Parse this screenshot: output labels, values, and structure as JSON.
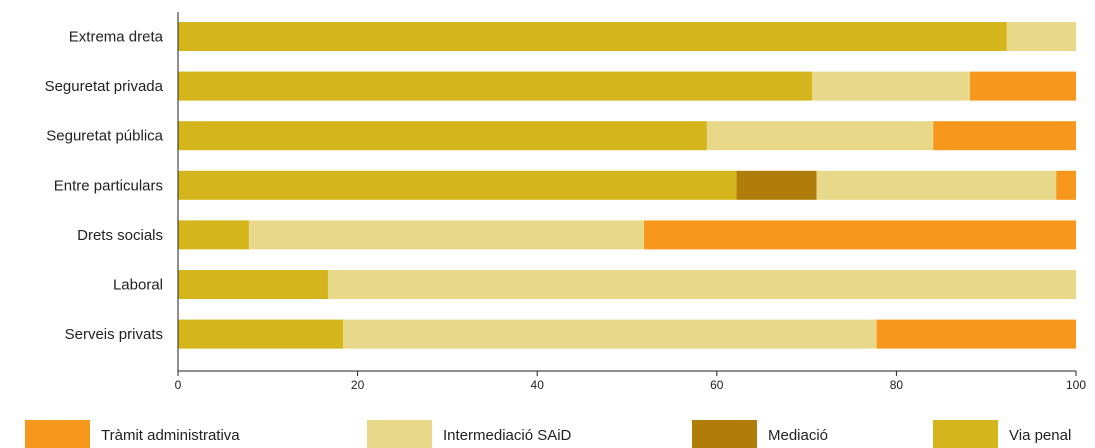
{
  "chart_data": {
    "type": "bar",
    "orientation": "horizontal",
    "stacked": true,
    "categories": [
      "Extrema dreta",
      "Seguretat privada",
      "Seguretat pública",
      "Entre particulars",
      "Drets socials",
      "Laboral",
      "Serveis privats"
    ],
    "series": [
      {
        "name": "Via penal",
        "color": "#D4B51C",
        "values": [
          92.3,
          70.6,
          58.9,
          62.2,
          7.9,
          16.7,
          18.4
        ]
      },
      {
        "name": "Mediació",
        "color": "#B07D0A",
        "values": [
          0,
          0,
          0,
          8.9,
          0,
          0,
          0
        ]
      },
      {
        "name": "Intermediació SAiD",
        "color": "#E8D98A",
        "values": [
          7.7,
          17.6,
          25.2,
          26.7,
          44.0,
          83.3,
          59.4
        ]
      },
      {
        "name": "Tràmit administrativa",
        "color": "#F7971C",
        "values": [
          0,
          11.8,
          15.9,
          2.2,
          48.1,
          0,
          22.2
        ]
      }
    ],
    "legend_order": [
      "Tràmit administrativa",
      "Intermediació SAiD",
      "Mediació",
      "Via penal"
    ],
    "xlim": [
      0,
      100
    ],
    "xticks": [
      0,
      20,
      40,
      60,
      80,
      100
    ],
    "grid": false,
    "legend_position": "bottom"
  }
}
